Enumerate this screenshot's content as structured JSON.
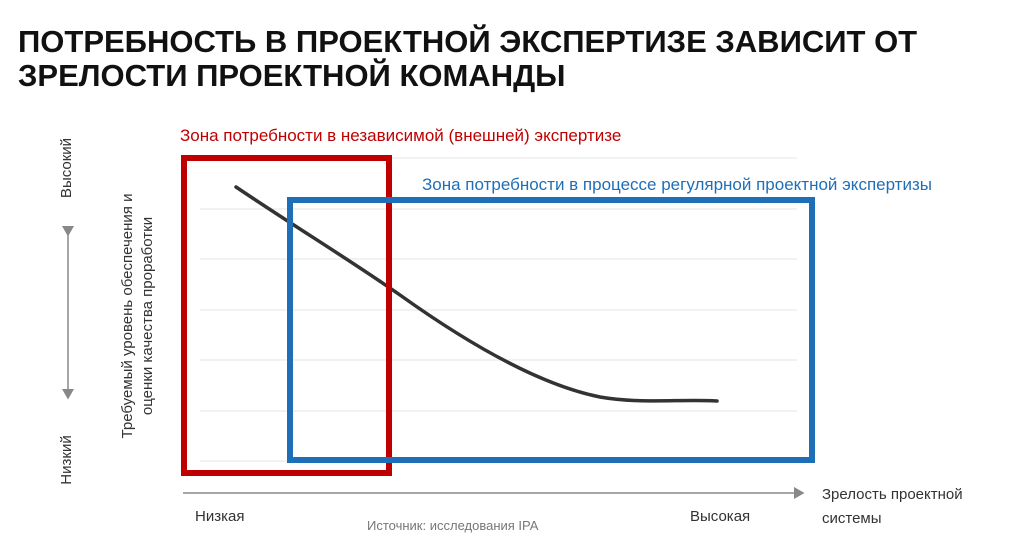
{
  "title": {
    "lines": [
      "ПОТРЕБНОСТЬ В ПРОЕКТНОЙ ЭКСПЕРТИЗЕ ЗАВИСИТ ОТ",
      "ЗРЕЛОСТИ ПРОЕКТНОЙ КОМАНДЫ"
    ]
  },
  "zones": {
    "external": "Зона потребности в независимой (внешней) экспертизе",
    "regular": "Зона потребности в процессе регулярной проектной экспертизы"
  },
  "y_axis": {
    "label_lines": [
      "Требуемый уровень обеспечения и",
      "оценки качества проработки"
    ],
    "high": "Высокий",
    "low": "Низкий"
  },
  "x_axis": {
    "label_lines": [
      "Зрелость проектной",
      "системы"
    ],
    "low": "Низкая",
    "high": "Высокая"
  },
  "source": "Источник: исследования IPA"
}
